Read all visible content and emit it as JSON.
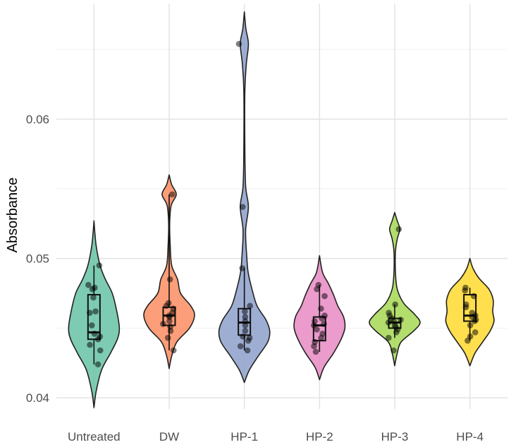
{
  "chart_data": {
    "type": "violin",
    "title": "",
    "xlabel": "",
    "ylabel": "Absorbance",
    "ylim": [
      0.0392,
      0.0683
    ],
    "yticks": [
      0.04,
      0.05,
      0.06
    ],
    "ytick_labels": [
      "0.04",
      "0.05",
      "0.06"
    ],
    "grid": true,
    "legend": "none",
    "categories": [
      "Untreated",
      "DW",
      "HP-1",
      "HP-2",
      "HP-3",
      "HP-4"
    ],
    "colors": [
      "#66c2a5",
      "#fc8d62",
      "#8da0cb",
      "#e78ac3",
      "#a6d854",
      "#ffd92f"
    ],
    "groups": [
      {
        "name": "Untreated",
        "range": [
          0.0393,
          0.0527
        ],
        "points": [
          0.0495,
          0.0481,
          0.0479,
          0.0478,
          0.0472,
          0.0462,
          0.0461,
          0.0452,
          0.0446,
          0.0444,
          0.0442,
          0.0438,
          0.0434,
          0.0424
        ],
        "box": {
          "q1": 0.0442,
          "median": 0.0447,
          "q3": 0.0474,
          "whisker_low": 0.0424,
          "whisker_high": 0.0495
        },
        "density": [
          [
            0.0393,
            0.0
          ],
          [
            0.0405,
            0.09
          ],
          [
            0.042,
            0.3
          ],
          [
            0.0432,
            0.65
          ],
          [
            0.0442,
            0.92
          ],
          [
            0.045,
            1.0
          ],
          [
            0.0462,
            0.9
          ],
          [
            0.0475,
            0.72
          ],
          [
            0.0485,
            0.45
          ],
          [
            0.0495,
            0.24
          ],
          [
            0.051,
            0.08
          ],
          [
            0.0527,
            0.0
          ]
        ]
      },
      {
        "name": "DW",
        "range": [
          0.0421,
          0.056
        ],
        "points": [
          0.0546,
          0.0485,
          0.0468,
          0.0466,
          0.0464,
          0.0461,
          0.0459,
          0.0458,
          0.0455,
          0.0453,
          0.0451,
          0.0448,
          0.0443,
          0.0434
        ],
        "box": {
          "q1": 0.0452,
          "median": 0.0459,
          "q3": 0.0465,
          "whisker_low": 0.0434,
          "whisker_high": 0.0546
        },
        "density": [
          [
            0.0421,
            0.0
          ],
          [
            0.043,
            0.1
          ],
          [
            0.044,
            0.3
          ],
          [
            0.045,
            0.8
          ],
          [
            0.0459,
            1.0
          ],
          [
            0.0466,
            0.85
          ],
          [
            0.0475,
            0.45
          ],
          [
            0.0485,
            0.33
          ],
          [
            0.0495,
            0.1
          ],
          [
            0.051,
            0.04
          ],
          [
            0.0525,
            0.02
          ],
          [
            0.0538,
            0.08
          ],
          [
            0.0546,
            0.28
          ],
          [
            0.0553,
            0.1
          ],
          [
            0.056,
            0.0
          ]
        ]
      },
      {
        "name": "HP-1",
        "range": [
          0.0411,
          0.0677
        ],
        "points": [
          0.0654,
          0.0537,
          0.0493,
          0.0466,
          0.0462,
          0.0458,
          0.0455,
          0.0452,
          0.0448,
          0.0444,
          0.0443,
          0.0441,
          0.0437,
          0.0434
        ],
        "box": {
          "q1": 0.0445,
          "median": 0.0454,
          "q3": 0.0464,
          "whisker_low": 0.0434,
          "whisker_high": 0.0493
        },
        "density": [
          [
            0.0411,
            0.0
          ],
          [
            0.042,
            0.2
          ],
          [
            0.043,
            0.55
          ],
          [
            0.044,
            0.92
          ],
          [
            0.0448,
            1.0
          ],
          [
            0.0456,
            0.85
          ],
          [
            0.0466,
            0.5
          ],
          [
            0.0478,
            0.3
          ],
          [
            0.049,
            0.15
          ],
          [
            0.05,
            0.1
          ],
          [
            0.052,
            0.05
          ],
          [
            0.0537,
            0.16
          ],
          [
            0.0552,
            0.05
          ],
          [
            0.058,
            0.02
          ],
          [
            0.062,
            0.02
          ],
          [
            0.064,
            0.08
          ],
          [
            0.0654,
            0.16
          ],
          [
            0.0665,
            0.06
          ],
          [
            0.0677,
            0.0
          ]
        ]
      },
      {
        "name": "HP-2",
        "range": [
          0.0413,
          0.0502
        ],
        "points": [
          0.0481,
          0.0478,
          0.0473,
          0.0464,
          0.0459,
          0.0457,
          0.0455,
          0.0453,
          0.0452,
          0.0449,
          0.0446,
          0.0443,
          0.044,
          0.0437,
          0.0433
        ],
        "box": {
          "q1": 0.0441,
          "median": 0.0452,
          "q3": 0.0458,
          "whisker_low": 0.0433,
          "whisker_high": 0.0481
        },
        "density": [
          [
            0.0413,
            0.0
          ],
          [
            0.0422,
            0.18
          ],
          [
            0.0432,
            0.55
          ],
          [
            0.0442,
            0.85
          ],
          [
            0.045,
            1.0
          ],
          [
            0.0458,
            0.95
          ],
          [
            0.0466,
            0.72
          ],
          [
            0.0474,
            0.55
          ],
          [
            0.0482,
            0.35
          ],
          [
            0.049,
            0.12
          ],
          [
            0.0502,
            0.0
          ]
        ]
      },
      {
        "name": "HP-3",
        "range": [
          0.0423,
          0.0533
        ],
        "points": [
          0.0521,
          0.0467,
          0.0461,
          0.0459,
          0.0457,
          0.0456,
          0.0455,
          0.0454,
          0.0452,
          0.0451,
          0.0449,
          0.0447,
          0.0443,
          0.0434
        ],
        "box": {
          "q1": 0.045,
          "median": 0.0454,
          "q3": 0.0457,
          "whisker_low": 0.0443,
          "whisker_high": 0.0467
        },
        "density": [
          [
            0.0423,
            0.0
          ],
          [
            0.0432,
            0.1
          ],
          [
            0.044,
            0.25
          ],
          [
            0.0448,
            0.75
          ],
          [
            0.0454,
            1.0
          ],
          [
            0.046,
            0.78
          ],
          [
            0.0468,
            0.35
          ],
          [
            0.0478,
            0.1
          ],
          [
            0.049,
            0.03
          ],
          [
            0.0505,
            0.03
          ],
          [
            0.0514,
            0.1
          ],
          [
            0.0521,
            0.2
          ],
          [
            0.0527,
            0.1
          ],
          [
            0.0533,
            0.0
          ]
        ]
      },
      {
        "name": "HP-4",
        "range": [
          0.0423,
          0.05
        ],
        "points": [
          0.0479,
          0.0477,
          0.0473,
          0.0467,
          0.0465,
          0.0461,
          0.0459,
          0.0458,
          0.0456,
          0.0455,
          0.0452,
          0.0447,
          0.0444,
          0.0441
        ],
        "box": {
          "q1": 0.0455,
          "median": 0.0459,
          "q3": 0.0474,
          "whisker_low": 0.0441,
          "whisker_high": 0.0479
        },
        "density": [
          [
            0.0423,
            0.0
          ],
          [
            0.0432,
            0.2
          ],
          [
            0.044,
            0.5
          ],
          [
            0.0448,
            0.8
          ],
          [
            0.0455,
            0.95
          ],
          [
            0.0462,
            0.9
          ],
          [
            0.047,
            0.92
          ],
          [
            0.0478,
            0.75
          ],
          [
            0.0486,
            0.35
          ],
          [
            0.0493,
            0.12
          ],
          [
            0.05,
            0.0
          ]
        ]
      }
    ]
  }
}
